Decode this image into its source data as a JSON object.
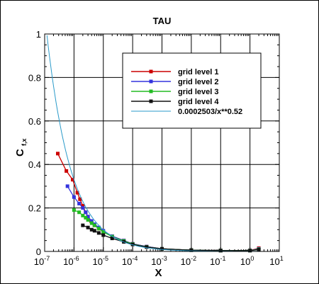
{
  "chart_data": {
    "type": "line",
    "title": "TAU",
    "xlabel": "X",
    "ylabel_main": "C",
    "ylabel_sub": "f,x",
    "x_scale": "log",
    "xlim": [
      1e-07,
      10
    ],
    "ylim": [
      0,
      1
    ],
    "grid": true,
    "legend_position": "upper-right",
    "x_ticks": [
      {
        "base": "10",
        "exp": "-7"
      },
      {
        "base": "10",
        "exp": "-6"
      },
      {
        "base": "10",
        "exp": "-5"
      },
      {
        "base": "10",
        "exp": "-4"
      },
      {
        "base": "10",
        "exp": "-3"
      },
      {
        "base": "10",
        "exp": "-2"
      },
      {
        "base": "10",
        "exp": "-1"
      },
      {
        "base": "10",
        "exp": "0"
      },
      {
        "base": "10",
        "exp": "1"
      }
    ],
    "y_ticks": [
      "0",
      "0.2",
      "0.4",
      "0.6",
      "0.8",
      "1"
    ],
    "series": [
      {
        "name": "grid level 1",
        "color": "#cc0000",
        "marker": "square",
        "x": [
          2.8e-07,
          5.5e-07,
          9e-07,
          1.3e-06,
          1.6e-06,
          2e-06,
          2.5e-06,
          3e-06,
          3.8e-06,
          5e-06,
          7e-06,
          1e-05,
          2e-05,
          5e-05,
          0.0001,
          0.0003,
          0.001,
          0.01,
          0.1,
          1,
          2
        ],
        "y": [
          0.45,
          0.37,
          0.33,
          0.27,
          0.24,
          0.21,
          0.18,
          0.16,
          0.14,
          0.12,
          0.105,
          0.09,
          0.07,
          0.05,
          0.035,
          0.022,
          0.012,
          0.006,
          0.004,
          0.004,
          0.015
        ]
      },
      {
        "name": "grid level 2",
        "color": "#3333dd",
        "marker": "square",
        "x": [
          6e-07,
          1e-06,
          1.5e-06,
          2e-06,
          2.5e-06,
          3e-06,
          4e-06,
          5e-06,
          7e-06,
          1e-05,
          2e-05,
          5e-05,
          0.0001,
          0.0003,
          0.001,
          0.01,
          0.1,
          1,
          2
        ],
        "y": [
          0.3,
          0.25,
          0.22,
          0.2,
          0.18,
          0.16,
          0.14,
          0.125,
          0.11,
          0.095,
          0.07,
          0.05,
          0.035,
          0.022,
          0.012,
          0.006,
          0.004,
          0.004,
          0.012
        ]
      },
      {
        "name": "grid level 3",
        "color": "#22bb22",
        "marker": "square",
        "x": [
          1e-06,
          1.5e-06,
          2e-06,
          2.5e-06,
          3e-06,
          4e-06,
          5e-06,
          7e-06,
          1e-05,
          2e-05,
          5e-05,
          0.0001,
          0.0003,
          0.001,
          0.01,
          0.1,
          1,
          2
        ],
        "y": [
          0.19,
          0.18,
          0.165,
          0.155,
          0.145,
          0.13,
          0.12,
          0.105,
          0.09,
          0.068,
          0.048,
          0.034,
          0.021,
          0.012,
          0.006,
          0.004,
          0.004,
          0.01
        ]
      },
      {
        "name": "grid level 4",
        "color": "#111111",
        "marker": "square",
        "x": [
          2e-06,
          3e-06,
          4e-06,
          5e-06,
          7e-06,
          1e-05,
          2e-05,
          5e-05,
          0.0001,
          0.0003,
          0.001,
          0.01,
          0.1,
          1,
          2
        ],
        "y": [
          0.12,
          0.11,
          0.1,
          0.095,
          0.085,
          0.075,
          0.06,
          0.044,
          0.032,
          0.02,
          0.012,
          0.006,
          0.004,
          0.004,
          0.008
        ]
      },
      {
        "name": "0.0002503/x**0.52",
        "color": "#2a9ac9",
        "marker": "none",
        "function": {
          "coef": 0.0002503,
          "power": 0.52
        },
        "x_range": [
          1.2e-07,
          2
        ]
      }
    ]
  }
}
